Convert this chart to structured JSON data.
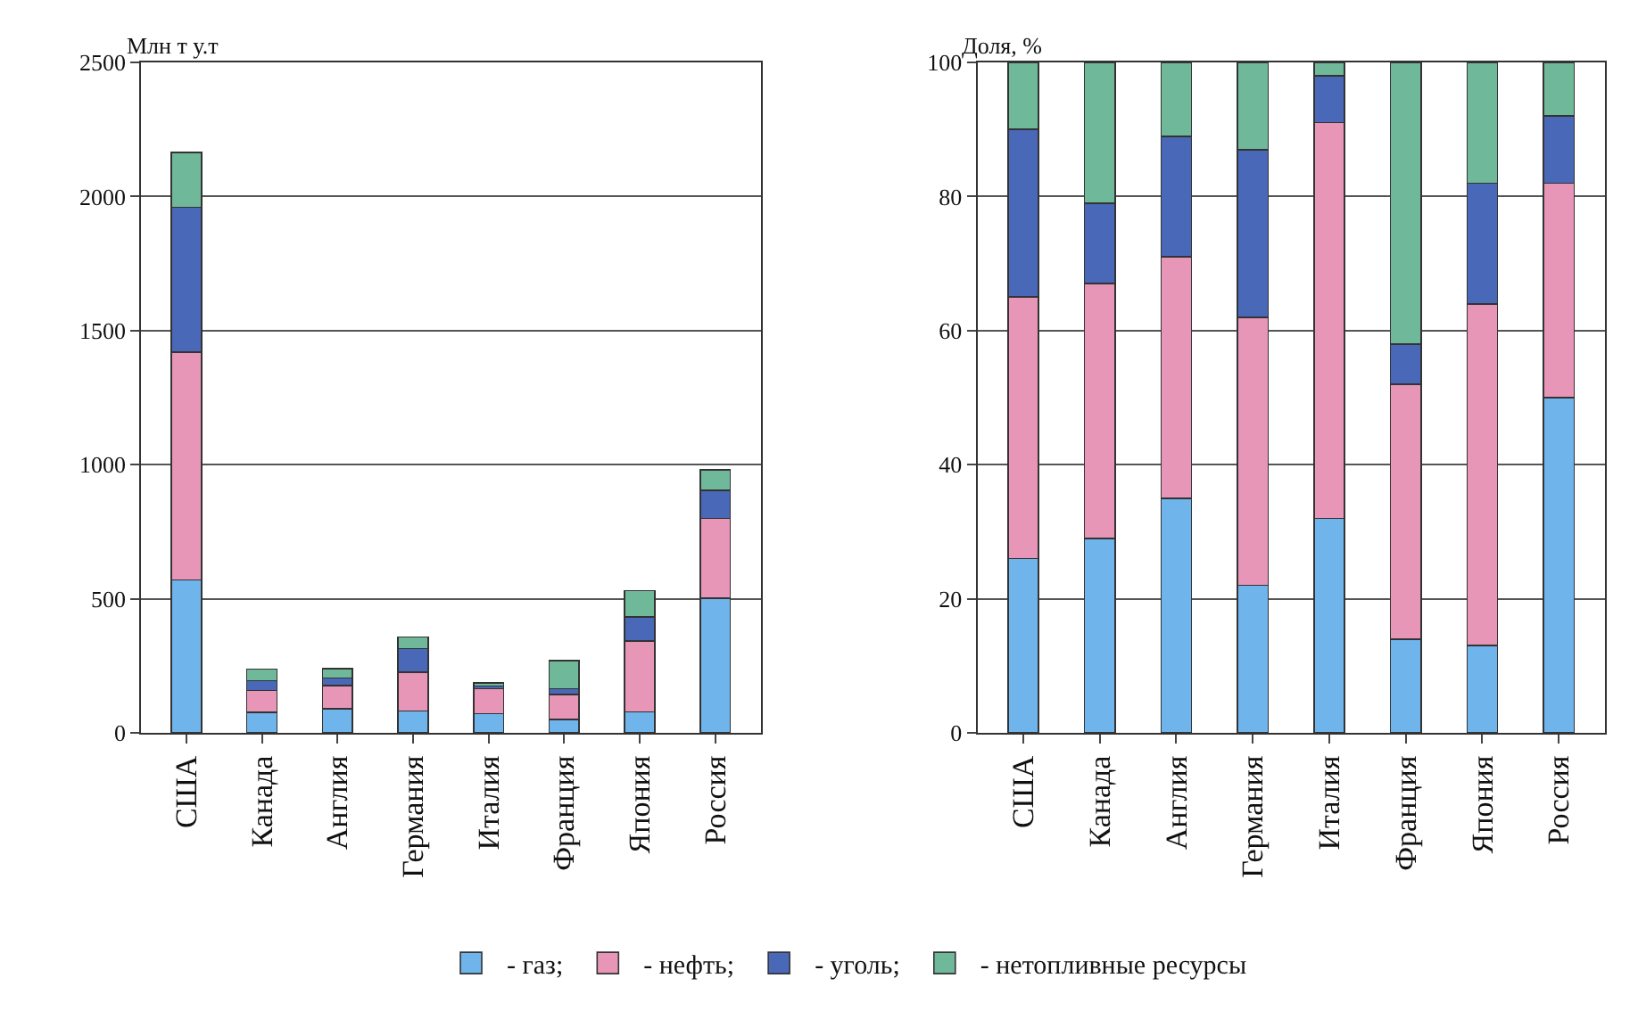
{
  "chart_data": [
    {
      "type": "bar",
      "stacked": true,
      "ylabel": "Млн т у.т",
      "categories": [
        "США",
        "Канада",
        "Англия",
        "Германия",
        "Италия",
        "Франция",
        "Япония",
        "Россия"
      ],
      "ylim": [
        0,
        2500
      ],
      "yticks": [
        0,
        500,
        1000,
        1500,
        2000,
        2500
      ],
      "grid": "y",
      "legend": "bottom",
      "series": [
        {
          "name": "- газ;",
          "color": "#6fb4ea",
          "values": [
            570,
            76,
            89,
            82,
            71,
            50,
            78,
            502
          ]
        },
        {
          "name": "- нефть;",
          "color": "#e896b8",
          "values": [
            850,
            82,
            88,
            145,
            93,
            93,
            264,
            298
          ]
        },
        {
          "name": "- уголь;",
          "color": "#4a68b8",
          "values": [
            540,
            37,
            28,
            87,
            11,
            21,
            91,
            104
          ]
        },
        {
          "name": "- нетопливные ресурсы",
          "color": "#6fb99a",
          "values": [
            205,
            43,
            35,
            43,
            11,
            106,
            97,
            76
          ]
        }
      ]
    },
    {
      "type": "bar",
      "stacked": true,
      "ylabel": "Доля, %",
      "categories": [
        "США",
        "Канада",
        "Англия",
        "Германия",
        "Италия",
        "Франция",
        "Япония",
        "Россия"
      ],
      "ylim": [
        0,
        100
      ],
      "yticks": [
        0,
        20,
        40,
        60,
        80,
        100
      ],
      "grid": "y",
      "series": [
        {
          "color": "#6fb4ea",
          "values": [
            26,
            29,
            35,
            22,
            32,
            14,
            13,
            50
          ]
        },
        {
          "color": "#e896b8",
          "values": [
            39,
            38,
            36,
            40,
            59,
            38,
            51,
            32
          ]
        },
        {
          "color": "#4a68b8",
          "values": [
            25,
            12,
            18,
            25,
            7,
            6,
            18,
            10
          ]
        },
        {
          "color": "#6fb99a",
          "values": [
            10,
            21,
            11,
            13,
            2,
            42,
            18,
            8
          ]
        }
      ]
    }
  ]
}
